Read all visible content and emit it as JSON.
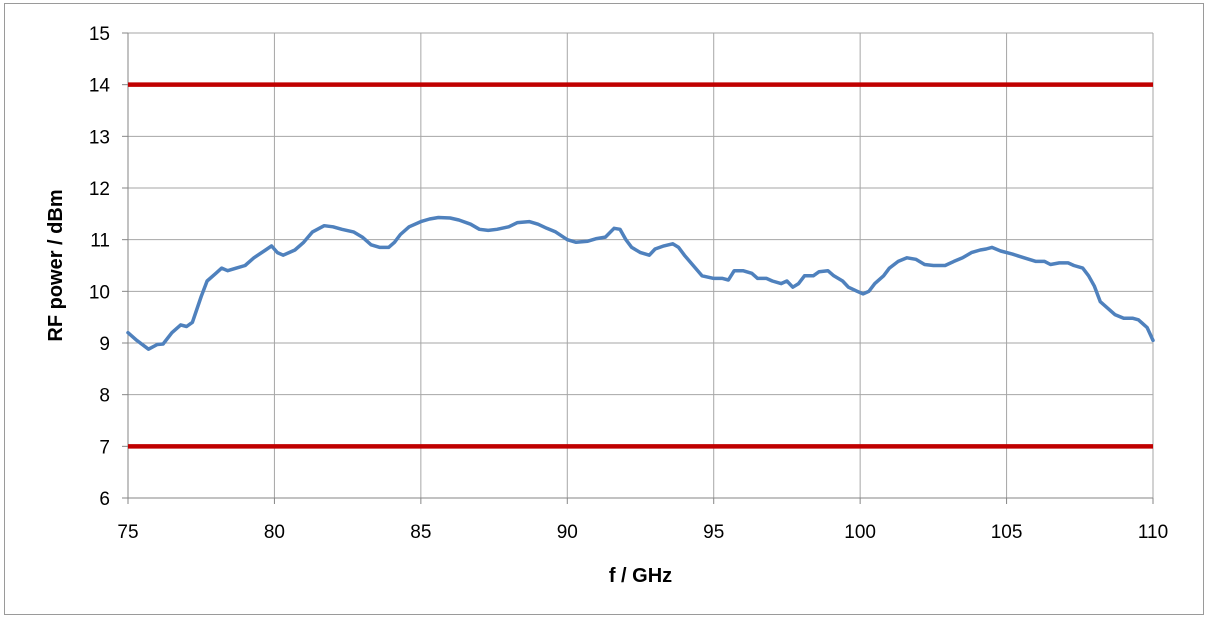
{
  "chart_data": {
    "type": "line",
    "title": "",
    "xlabel": "f / GHz",
    "ylabel": "RF power / dBm",
    "xlim": [
      75,
      110
    ],
    "ylim": [
      6,
      15
    ],
    "xticks": [
      75,
      80,
      85,
      90,
      95,
      100,
      105,
      110
    ],
    "yticks": [
      6,
      7,
      8,
      9,
      10,
      11,
      12,
      13,
      14,
      15
    ],
    "grid": true,
    "legend": "none",
    "limit_lines": [
      {
        "y": 14,
        "color": "#c00000"
      },
      {
        "y": 7,
        "color": "#c00000"
      }
    ],
    "series": [
      {
        "color": "#4f81bd",
        "points": [
          [
            75.0,
            9.2
          ],
          [
            75.3,
            9.05
          ],
          [
            75.7,
            8.88
          ],
          [
            76.0,
            8.97
          ],
          [
            76.2,
            8.98
          ],
          [
            76.5,
            9.2
          ],
          [
            76.8,
            9.35
          ],
          [
            77.0,
            9.32
          ],
          [
            77.2,
            9.4
          ],
          [
            77.5,
            9.9
          ],
          [
            77.7,
            10.2
          ],
          [
            78.0,
            10.35
          ],
          [
            78.2,
            10.45
          ],
          [
            78.4,
            10.4
          ],
          [
            78.7,
            10.45
          ],
          [
            79.0,
            10.5
          ],
          [
            79.3,
            10.65
          ],
          [
            79.7,
            10.8
          ],
          [
            79.9,
            10.88
          ],
          [
            80.1,
            10.75
          ],
          [
            80.3,
            10.7
          ],
          [
            80.7,
            10.8
          ],
          [
            81.0,
            10.95
          ],
          [
            81.3,
            11.15
          ],
          [
            81.7,
            11.27
          ],
          [
            82.0,
            11.25
          ],
          [
            82.3,
            11.2
          ],
          [
            82.7,
            11.15
          ],
          [
            83.0,
            11.05
          ],
          [
            83.3,
            10.9
          ],
          [
            83.6,
            10.85
          ],
          [
            83.9,
            10.85
          ],
          [
            84.1,
            10.95
          ],
          [
            84.3,
            11.1
          ],
          [
            84.6,
            11.25
          ],
          [
            85.0,
            11.35
          ],
          [
            85.3,
            11.4
          ],
          [
            85.6,
            11.43
          ],
          [
            86.0,
            11.42
          ],
          [
            86.3,
            11.38
          ],
          [
            86.7,
            11.3
          ],
          [
            87.0,
            11.2
          ],
          [
            87.3,
            11.18
          ],
          [
            87.6,
            11.2
          ],
          [
            88.0,
            11.25
          ],
          [
            88.3,
            11.33
          ],
          [
            88.7,
            11.35
          ],
          [
            89.0,
            11.3
          ],
          [
            89.3,
            11.22
          ],
          [
            89.6,
            11.15
          ],
          [
            90.0,
            11.0
          ],
          [
            90.3,
            10.95
          ],
          [
            90.7,
            10.97
          ],
          [
            91.0,
            11.02
          ],
          [
            91.3,
            11.05
          ],
          [
            91.6,
            11.22
          ],
          [
            91.8,
            11.2
          ],
          [
            92.0,
            11.0
          ],
          [
            92.2,
            10.85
          ],
          [
            92.5,
            10.75
          ],
          [
            92.8,
            10.7
          ],
          [
            93.0,
            10.82
          ],
          [
            93.3,
            10.88
          ],
          [
            93.6,
            10.92
          ],
          [
            93.8,
            10.85
          ],
          [
            94.0,
            10.7
          ],
          [
            94.3,
            10.5
          ],
          [
            94.6,
            10.3
          ],
          [
            95.0,
            10.25
          ],
          [
            95.3,
            10.25
          ],
          [
            95.5,
            10.22
          ],
          [
            95.7,
            10.4
          ],
          [
            96.0,
            10.4
          ],
          [
            96.3,
            10.35
          ],
          [
            96.5,
            10.25
          ],
          [
            96.8,
            10.25
          ],
          [
            97.0,
            10.2
          ],
          [
            97.3,
            10.15
          ],
          [
            97.5,
            10.2
          ],
          [
            97.7,
            10.08
          ],
          [
            97.9,
            10.15
          ],
          [
            98.1,
            10.3
          ],
          [
            98.4,
            10.3
          ],
          [
            98.6,
            10.38
          ],
          [
            98.9,
            10.4
          ],
          [
            99.1,
            10.3
          ],
          [
            99.4,
            10.2
          ],
          [
            99.6,
            10.08
          ],
          [
            99.9,
            10.0
          ],
          [
            100.1,
            9.95
          ],
          [
            100.3,
            10.0
          ],
          [
            100.5,
            10.15
          ],
          [
            100.8,
            10.3
          ],
          [
            101.0,
            10.45
          ],
          [
            101.3,
            10.58
          ],
          [
            101.6,
            10.65
          ],
          [
            101.9,
            10.62
          ],
          [
            102.2,
            10.52
          ],
          [
            102.5,
            10.5
          ],
          [
            102.9,
            10.5
          ],
          [
            103.2,
            10.58
          ],
          [
            103.5,
            10.65
          ],
          [
            103.8,
            10.75
          ],
          [
            104.1,
            10.8
          ],
          [
            104.3,
            10.82
          ],
          [
            104.5,
            10.85
          ],
          [
            104.8,
            10.78
          ],
          [
            105.2,
            10.72
          ],
          [
            105.6,
            10.65
          ],
          [
            106.0,
            10.58
          ],
          [
            106.3,
            10.58
          ],
          [
            106.5,
            10.52
          ],
          [
            106.8,
            10.55
          ],
          [
            107.1,
            10.55
          ],
          [
            107.3,
            10.5
          ],
          [
            107.6,
            10.45
          ],
          [
            107.8,
            10.3
          ],
          [
            108.0,
            10.1
          ],
          [
            108.2,
            9.8
          ],
          [
            108.4,
            9.7
          ],
          [
            108.7,
            9.55
          ],
          [
            109.0,
            9.48
          ],
          [
            109.3,
            9.48
          ],
          [
            109.5,
            9.45
          ],
          [
            109.8,
            9.3
          ],
          [
            110.0,
            9.05
          ]
        ]
      }
    ]
  }
}
